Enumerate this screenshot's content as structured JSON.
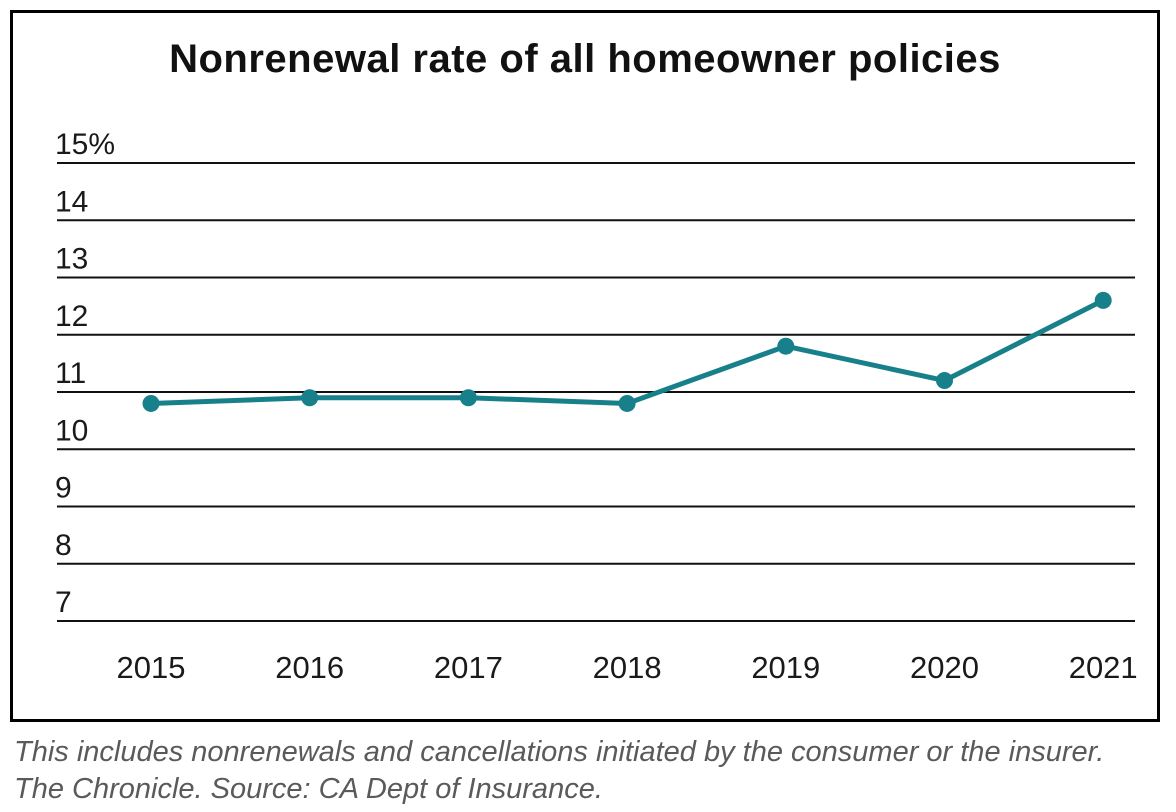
{
  "chart_data": {
    "type": "line",
    "title": "Nonrenewal rate of all homeowner policies",
    "categories": [
      "2015",
      "2016",
      "2017",
      "2018",
      "2019",
      "2020",
      "2021"
    ],
    "values": [
      10.8,
      10.9,
      10.9,
      10.8,
      11.8,
      11.2,
      12.6
    ],
    "unit": "%",
    "xlabel": "",
    "ylabel": "",
    "ylim": [
      7,
      15
    ],
    "yticks": [
      15,
      14,
      13,
      12,
      11,
      10,
      9,
      8,
      7
    ],
    "ytick_top_label": "15%",
    "grid": "horizontal",
    "legend": "none"
  },
  "colors": {
    "line": "#17808A",
    "grid": "#111111",
    "tick_text": "#1a1a1a",
    "footnote_text": "#5a5a5a",
    "border": "#000000"
  },
  "footer": {
    "line1": "This includes nonrenewals and cancellations initiated by the consumer or the insurer.",
    "line2": "The Chronicle. Source: CA Dept of Insurance."
  }
}
